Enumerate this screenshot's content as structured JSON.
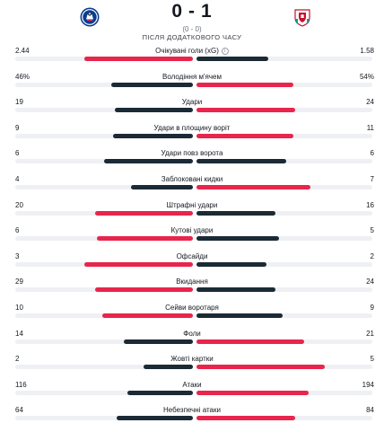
{
  "match": {
    "home_team_logo": "chelsea-crest-icon",
    "away_team_logo": "liverpool-crest-icon",
    "home_score": "0",
    "separator": "-",
    "away_score": "1",
    "aggregate": "(0 - 0)",
    "period_note": "після додаткового часу",
    "colors": {
      "red": "#e8254c",
      "dark": "#1b2a35",
      "track": "#eef0f3"
    }
  },
  "stats": [
    {
      "name": "Очікувані голи (xG)",
      "home": "2.44",
      "away": "1.58",
      "home_frac": 0.61,
      "away_frac": 0.41,
      "home_color": "red",
      "away_color": "dark",
      "info_icon": true
    },
    {
      "name": "Володіння м'ячем",
      "home": "46%",
      "away": "54%",
      "home_frac": 0.46,
      "away_frac": 0.55,
      "home_color": "dark",
      "away_color": "red"
    },
    {
      "name": "Удари",
      "home": "19",
      "away": "24",
      "home_frac": 0.44,
      "away_frac": 0.56,
      "home_color": "dark",
      "away_color": "red"
    },
    {
      "name": "Удари в площину воріт",
      "home": "9",
      "away": "11",
      "home_frac": 0.45,
      "away_frac": 0.55,
      "home_color": "dark",
      "away_color": "red"
    },
    {
      "name": "Удари повз ворота",
      "home": "6",
      "away": "6",
      "home_frac": 0.5,
      "away_frac": 0.51,
      "home_color": "dark",
      "away_color": "dark"
    },
    {
      "name": "Заблоковані кидки",
      "home": "4",
      "away": "7",
      "home_frac": 0.35,
      "away_frac": 0.65,
      "home_color": "dark",
      "away_color": "red"
    },
    {
      "name": "Штрафні удари",
      "home": "20",
      "away": "16",
      "home_frac": 0.55,
      "away_frac": 0.45,
      "home_color": "red",
      "away_color": "dark"
    },
    {
      "name": "Кутові удари",
      "home": "6",
      "away": "5",
      "home_frac": 0.54,
      "away_frac": 0.47,
      "home_color": "red",
      "away_color": "dark"
    },
    {
      "name": "Офсайди",
      "home": "3",
      "away": "2",
      "home_frac": 0.61,
      "away_frac": 0.4,
      "home_color": "red",
      "away_color": "dark"
    },
    {
      "name": "Вкидання",
      "home": "29",
      "away": "24",
      "home_frac": 0.55,
      "away_frac": 0.45,
      "home_color": "red",
      "away_color": "dark"
    },
    {
      "name": "Сейви воротаря",
      "home": "10",
      "away": "9",
      "home_frac": 0.51,
      "away_frac": 0.49,
      "home_color": "red",
      "away_color": "dark"
    },
    {
      "name": "Фоли",
      "home": "14",
      "away": "21",
      "home_frac": 0.39,
      "away_frac": 0.61,
      "home_color": "dark",
      "away_color": "red"
    },
    {
      "name": "Жовті картки",
      "home": "2",
      "away": "5",
      "home_frac": 0.28,
      "away_frac": 0.73,
      "home_color": "dark",
      "away_color": "red"
    },
    {
      "name": "Атаки",
      "home": "116",
      "away": "194",
      "home_frac": 0.37,
      "away_frac": 0.64,
      "home_color": "dark",
      "away_color": "red"
    },
    {
      "name": "Небезпечні атаки",
      "home": "64",
      "away": "84",
      "home_frac": 0.43,
      "away_frac": 0.56,
      "home_color": "dark",
      "away_color": "red"
    }
  ]
}
